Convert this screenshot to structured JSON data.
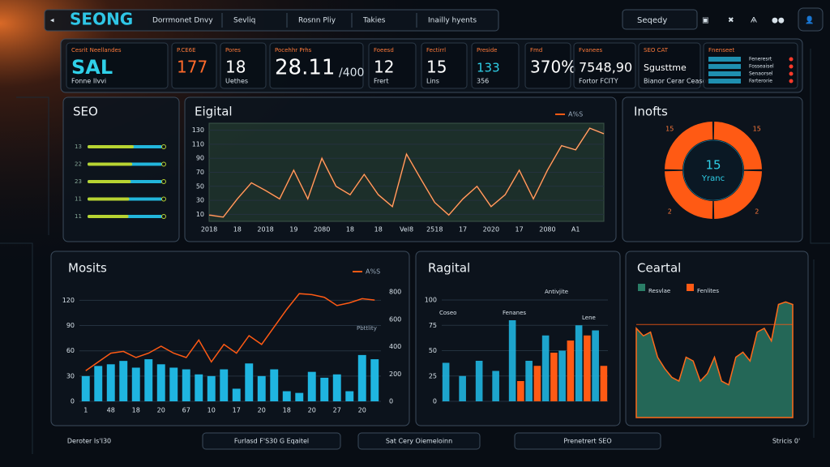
{
  "header": {
    "logo": "SEONG",
    "nav": [
      "Dorrmonet Dnvy",
      "Sevliq",
      "Rosnn Pliy",
      "Takies",
      "Inailly hyents"
    ],
    "search": "Seqedy"
  },
  "kpis": [
    {
      "label": "Cesrit Neellandes",
      "value": "SAL",
      "note": "Fonne Ilvvi"
    },
    {
      "label": "P.CE6E",
      "value": "177"
    },
    {
      "label": "Pores",
      "value": "18",
      "note": "Uethes"
    },
    {
      "label": "Pocehhr Prhs",
      "value": "28.11",
      "note": "/400"
    },
    {
      "label": "Foeesd",
      "value": "12",
      "note": "Frert"
    },
    {
      "label": "Fectirrl",
      "value": "15",
      "note": "Lins"
    },
    {
      "label": "Preside",
      "value": "133",
      "note": "356"
    },
    {
      "label": "Fmd",
      "value": "370%"
    },
    {
      "label": "Fvanees",
      "value": "7548,90",
      "note": "Fortor FCITY"
    },
    {
      "label": "SEO CAT",
      "value": "Sgusttme",
      "note": "Bianor Cerar Ceasor"
    },
    {
      "label": "Fnenseet",
      "items": [
        "Feneresrt",
        "Fosseaisel",
        "Senaorsel",
        "Farterorie"
      ]
    }
  ],
  "chart_data": [
    {
      "type": "hbar",
      "title": "SEO",
      "categories": [
        "13",
        "22",
        "23",
        "11",
        "11"
      ],
      "values": [
        62,
        60,
        58,
        56,
        55
      ],
      "xlim": [
        0,
        100
      ],
      "colors": [
        "#b8d432",
        "#22b6dc"
      ]
    },
    {
      "type": "line",
      "title": "Eigital",
      "legend": "A%S",
      "categories": [
        "2018",
        null,
        "18",
        null,
        "2018",
        null,
        "19",
        null,
        "2080",
        null,
        "18",
        null,
        "18",
        null,
        "Vel8",
        null,
        "2518",
        null,
        "17",
        null,
        "2020",
        null,
        "17",
        null,
        "2080",
        null,
        "A1",
        null,
        null
      ],
      "values": [
        9,
        6,
        32,
        55,
        44,
        32,
        73,
        32,
        90,
        50,
        38,
        67,
        38,
        21,
        96,
        61,
        27,
        9,
        32,
        50,
        21,
        38,
        73,
        32,
        73,
        108,
        102,
        133,
        125
      ],
      "ylim": [
        0,
        140
      ],
      "yticks": [
        10,
        30,
        50,
        70,
        90,
        110,
        130
      ],
      "color": "#f06b1f",
      "grid": true
    },
    {
      "type": "donut",
      "title": "Inofts",
      "center_value": "15",
      "center_label": "Yranc",
      "categories": [
        "15",
        "2",
        "2",
        "15"
      ],
      "values": [
        25,
        25,
        25,
        25
      ],
      "color": "#ff5a14"
    },
    {
      "type": "bar_line",
      "title": "Mosits",
      "legend": "A%S",
      "annotation": "Pbttlity",
      "categories": [
        "1",
        null,
        "48",
        null,
        "18",
        null,
        "20",
        null,
        "67",
        null,
        "10",
        null,
        "17",
        null,
        "20",
        null,
        "18",
        null,
        "20",
        null,
        "27",
        null,
        "20",
        null
      ],
      "series": [
        {
          "type": "bar",
          "color": "#1fb5e0",
          "values": [
            30,
            42,
            44,
            48,
            40,
            50,
            44,
            40,
            38,
            32,
            30,
            38,
            15,
            45,
            30,
            38,
            12,
            10,
            35,
            28,
            32,
            12,
            55,
            50
          ]
        },
        {
          "type": "line",
          "color": "#ff5a14",
          "axis": "y2",
          "values": [
            224,
            288,
            352,
            365,
            320,
            352,
            403,
            352,
            320,
            448,
            288,
            416,
            352,
            480,
            416,
            544,
            672,
            787,
            780,
            760,
            700,
            720,
            750,
            740
          ]
        }
      ],
      "ylim": [
        0,
        130
      ],
      "yticks": [
        0,
        30,
        60,
        90,
        120
      ],
      "y2lim": [
        0,
        800
      ],
      "y2ticks": [
        0,
        200,
        400,
        600,
        800
      ],
      "grid": true
    },
    {
      "type": "bar",
      "title": "Ragital",
      "annotations": [
        "Antivjite",
        "Coseo",
        "Fenanes",
        "Lene"
      ],
      "series": [
        {
          "color": "#1fb5e0",
          "values": [
            38,
            25,
            40,
            30,
            80,
            40,
            65,
            50,
            75,
            70
          ]
        },
        {
          "color": "#ff5a14",
          "values": [
            null,
            null,
            null,
            null,
            20,
            35,
            48,
            60,
            65,
            35
          ]
        }
      ],
      "ylim": [
        0,
        100
      ],
      "yticks": [
        0,
        25,
        50,
        75,
        100
      ],
      "grid": true
    },
    {
      "type": "area",
      "title": "Ceartal",
      "series": [
        {
          "name": "Resvlae",
          "color": "#2a7d66",
          "stroke": "#ff6a1a",
          "values": [
            71,
            65,
            68,
            48,
            39,
            32,
            29,
            48,
            45,
            29,
            35,
            48,
            29,
            26,
            48,
            52,
            45,
            68,
            71,
            61,
            90,
            92,
            90
          ]
        },
        {
          "name": "Fenlites",
          "color": "#ff5a14",
          "values": [
            74,
            74
          ]
        }
      ],
      "ylim": [
        0,
        100
      ]
    }
  ],
  "footer": [
    "Deroter Is'I30",
    "Furlasd F'S30 G Eqaitel",
    "Sat Cery Oiemeloinn",
    "Prenetrert SEO",
    "Stricis 0'"
  ]
}
